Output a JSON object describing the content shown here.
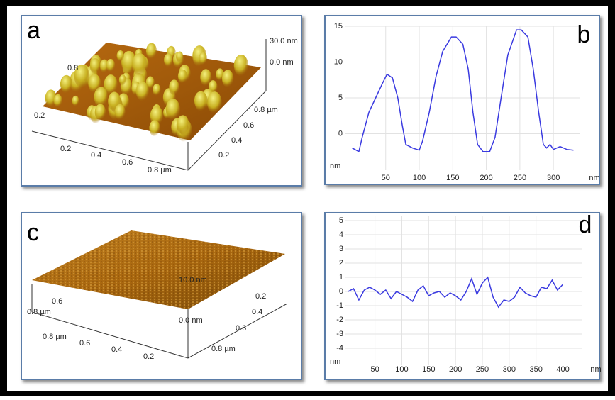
{
  "images": [
    {
      "label": "a",
      "z_ticks": [
        "30.0 nm",
        "0.0 nm"
      ],
      "left_ticks": [
        "0.8",
        "0.2"
      ],
      "front_ticks": [
        "0.2",
        "0.4",
        "0.6",
        "0.8 µm"
      ],
      "right_ticks": [
        "0.8 µm",
        "0.6",
        "0.4",
        "0.2"
      ]
    },
    {
      "label": "c",
      "z_ticks": [
        "10.0 nm",
        "0.0 nm"
      ],
      "left_ticks": [
        "0.8 µm",
        "0.6"
      ],
      "front_ticks": [
        "0.8 µm",
        "0.6",
        "0.4",
        "0.2"
      ],
      "right_ticks": [
        "0.2",
        "0.4",
        "0.6",
        "0.8 µm"
      ]
    }
  ],
  "chart_data": [
    {
      "type": "line",
      "label": "b",
      "xlabel": "nm",
      "ylabel": "nm",
      "color": "#3a3ae0",
      "grid": true,
      "x": [
        0,
        10,
        15,
        25,
        35,
        45,
        52,
        60,
        68,
        75,
        80,
        90,
        100,
        105,
        115,
        125,
        135,
        148,
        155,
        165,
        173,
        180,
        187,
        195,
        205,
        213,
        222,
        232,
        245,
        252,
        262,
        270,
        278,
        285,
        290,
        295,
        300,
        310,
        320,
        330
      ],
      "values": [
        -2,
        -2.5,
        -0.5,
        3,
        5,
        7,
        8.3,
        7.8,
        5,
        1,
        -1.5,
        -2,
        -2.3,
        -1,
        3,
        8,
        11.5,
        13.5,
        13.5,
        12.5,
        9,
        3,
        -1.5,
        -2.5,
        -2.5,
        -0.5,
        5,
        11,
        14.5,
        14.5,
        13.5,
        9,
        3,
        -1.5,
        -2,
        -1.5,
        -2.2,
        -1.8,
        -2.2,
        -2.3
      ],
      "xlim": [
        -10,
        340
      ],
      "ylim": [
        -5,
        15
      ],
      "xticks": [
        50,
        100,
        150,
        200,
        250,
        300
      ],
      "yticks": [
        0,
        5,
        10,
        15
      ]
    },
    {
      "type": "line",
      "label": "d",
      "xlabel": "nm",
      "ylabel": "nm",
      "color": "#3a3ae0",
      "grid": true,
      "x": [
        0,
        10,
        20,
        30,
        40,
        50,
        60,
        70,
        80,
        90,
        100,
        110,
        120,
        130,
        140,
        150,
        160,
        170,
        180,
        190,
        200,
        210,
        220,
        230,
        240,
        250,
        260,
        270,
        280,
        290,
        300,
        310,
        320,
        330,
        340,
        350,
        360,
        370,
        380,
        390,
        400
      ],
      "values": [
        0,
        0.2,
        -0.6,
        0.1,
        0.3,
        0.1,
        -0.2,
        0.1,
        -0.5,
        0,
        -0.2,
        -0.4,
        -0.7,
        0.1,
        0.4,
        -0.3,
        -0.1,
        0,
        -0.4,
        -0.1,
        -0.3,
        -0.6,
        0,
        0.9,
        -0.2,
        0.6,
        1,
        -0.4,
        -1.1,
        -0.6,
        -0.7,
        -0.4,
        0.3,
        -0.1,
        -0.3,
        -0.4,
        0.3,
        0.2,
        0.8,
        0.1,
        0.5
      ],
      "xlim": [
        -5,
        435
      ],
      "ylim": [
        -5.2,
        5.3
      ],
      "xticks": [
        50,
        100,
        150,
        200,
        250,
        300,
        350,
        400
      ],
      "yticks": [
        5,
        4,
        3,
        2,
        1,
        0,
        -1,
        -2,
        -3,
        -4
      ]
    }
  ]
}
